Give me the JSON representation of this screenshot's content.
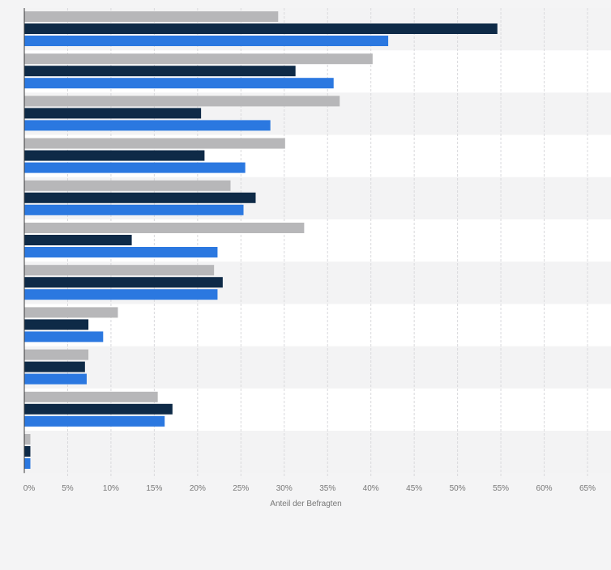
{
  "chart_data": {
    "type": "bar",
    "orientation": "horizontal",
    "xlabel": "Anteil der Befragten",
    "xlim": [
      0,
      65
    ],
    "x_ticks": [
      {
        "value": 0,
        "label": "0%"
      },
      {
        "value": 5,
        "label": "5%"
      },
      {
        "value": 10,
        "label": "10%"
      },
      {
        "value": 15,
        "label": "15%"
      },
      {
        "value": 20,
        "label": "20%"
      },
      {
        "value": 25,
        "label": "25%"
      },
      {
        "value": 30,
        "label": "30%"
      },
      {
        "value": 35,
        "label": "35%"
      },
      {
        "value": 40,
        "label": "40%"
      },
      {
        "value": 45,
        "label": "45%"
      },
      {
        "value": 50,
        "label": "50%"
      },
      {
        "value": 55,
        "label": "55%"
      },
      {
        "value": 60,
        "label": "60%"
      },
      {
        "value": 65,
        "label": "65%"
      }
    ],
    "category_count": 11,
    "grid": true,
    "legend": "none",
    "series": [
      {
        "color": "#b7b7b9",
        "values": [
          29.3,
          40.2,
          36.4,
          30.1,
          23.8,
          32.3,
          21.9,
          10.8,
          7.4,
          15.4,
          0.7
        ]
      },
      {
        "color": "#0e2a47",
        "values": [
          54.6,
          31.3,
          20.4,
          20.8,
          26.7,
          12.4,
          22.9,
          7.4,
          7.0,
          17.1,
          0.7
        ]
      },
      {
        "color": "#2b78e0",
        "values": [
          42.0,
          35.7,
          28.4,
          25.5,
          25.3,
          22.3,
          22.3,
          9.1,
          7.2,
          16.2,
          0.7
        ]
      }
    ]
  }
}
